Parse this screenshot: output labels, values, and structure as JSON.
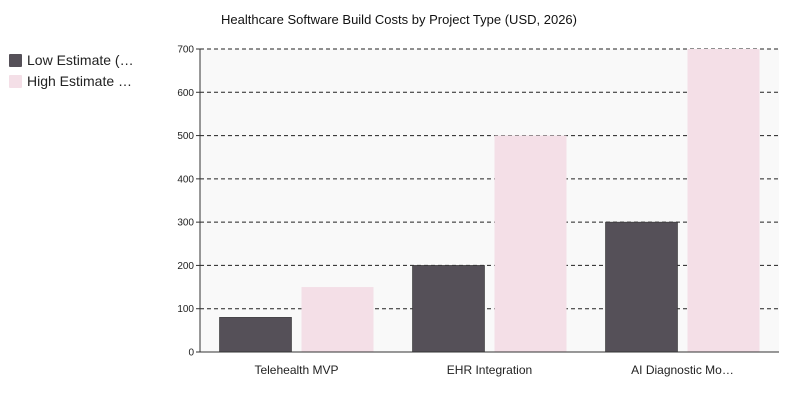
{
  "chart_data": {
    "type": "bar",
    "title": "Healthcare Software Build Costs by Project Type (USD, 2026)",
    "categories": [
      "Telehealth MVP",
      "EHR Integration",
      "AI Diagnostic Mo…"
    ],
    "series": [
      {
        "name": "Low Estimate (…",
        "values": [
          80,
          200,
          300
        ],
        "color": "#555058"
      },
      {
        "name": "High Estimate …",
        "values": [
          150,
          500,
          700
        ],
        "color": "#f4dfe7"
      }
    ],
    "yticks": [
      0,
      100,
      200,
      300,
      400,
      500,
      600,
      700
    ],
    "ylim": [
      0,
      700
    ],
    "grid": true,
    "legend_position": "top-left",
    "plot_background": "#f9f9f9"
  }
}
